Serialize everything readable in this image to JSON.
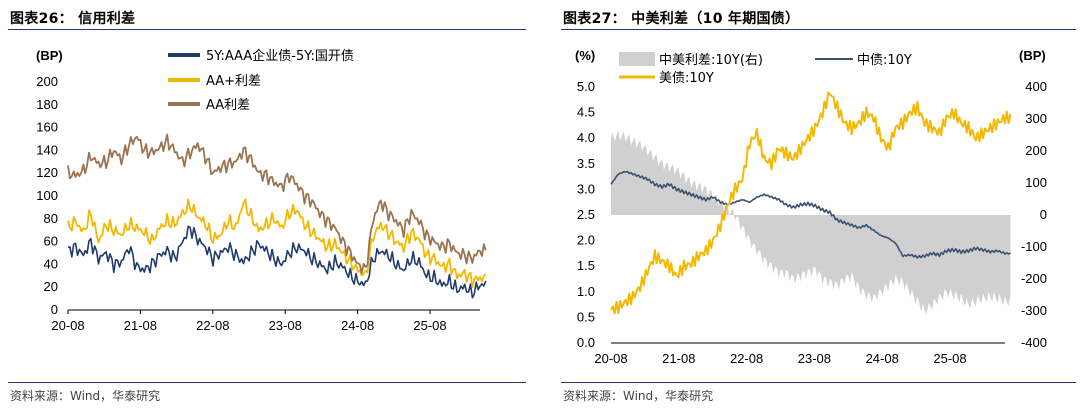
{
  "left": {
    "title": "图表26： 信用利差",
    "source": "资料来源：Wind，华泰研究",
    "chart_data": {
      "type": "line",
      "ylabel": "(BP)",
      "ylim": [
        0,
        200
      ],
      "yticks": [
        "0",
        "20",
        "40",
        "60",
        "80",
        "100",
        "120",
        "140",
        "160",
        "180",
        "200"
      ],
      "xticks": [
        "20-08",
        "21-08",
        "22-08",
        "23-08",
        "24-08",
        "25-08"
      ],
      "series": [
        {
          "name": "5Y:AAA企业债-5Y:国开债",
          "color": "#1f3a6b",
          "values": [
            52,
            55,
            48,
            60,
            45,
            50,
            40,
            42,
            55,
            38,
            35,
            40,
            48,
            52,
            45,
            60,
            72,
            62,
            55,
            45,
            50,
            55,
            48,
            42,
            50,
            58,
            52,
            45,
            40,
            50,
            55,
            52,
            45,
            40,
            35,
            42,
            38,
            30,
            25,
            22,
            45,
            52,
            48,
            40,
            35,
            45,
            42,
            30,
            28,
            22,
            25,
            18,
            20,
            15,
            22
          ]
        },
        {
          "name": "AA+利差",
          "color": "#f5b800",
          "values": [
            72,
            78,
            68,
            85,
            60,
            75,
            70,
            66,
            75,
            72,
            68,
            60,
            72,
            78,
            75,
            85,
            92,
            82,
            76,
            62,
            66,
            78,
            72,
            95,
            82,
            70,
            75,
            80,
            72,
            85,
            88,
            75,
            68,
            62,
            55,
            58,
            50,
            42,
            35,
            30,
            65,
            75,
            68,
            60,
            55,
            68,
            62,
            48,
            45,
            38,
            40,
            30,
            32,
            26,
            28
          ]
        },
        {
          "name": "AA利差",
          "color": "#9a7350",
          "values": [
            120,
            118,
            122,
            135,
            128,
            130,
            140,
            132,
            145,
            152,
            140,
            138,
            142,
            148,
            140,
            130,
            138,
            145,
            135,
            120,
            125,
            128,
            130,
            140,
            132,
            120,
            118,
            112,
            108,
            118,
            110,
            100,
            95,
            85,
            78,
            72,
            60,
            50,
            40,
            35,
            80,
            95,
            85,
            78,
            70,
            85,
            78,
            65,
            60,
            55,
            58,
            50,
            48,
            45,
            52
          ]
        }
      ]
    }
  },
  "right": {
    "title": "图表27： 中美利差（10 年期国债）",
    "source": "资料来源：Wind，华泰研究",
    "chart_data": {
      "type": "line",
      "ylabel_left": "(%)",
      "ylabel_right": "(BP)",
      "ylim_left": [
        0,
        5
      ],
      "ylim_right": [
        -400,
        400
      ],
      "yticks_left": [
        "0.0",
        "0.5",
        "1.0",
        "1.5",
        "2.0",
        "2.5",
        "3.0",
        "3.5",
        "4.0",
        "4.5",
        "5.0"
      ],
      "yticks_right": [
        "-400",
        "-300",
        "-200",
        "-100",
        "0",
        "100",
        "200",
        "300",
        "400"
      ],
      "xticks": [
        "20-08",
        "21-08",
        "22-08",
        "23-08",
        "24-08",
        "25-08"
      ],
      "series": [
        {
          "name": "中美利差:10Y(右)",
          "type": "area",
          "color": "#d0d0d0",
          "values": [
            240,
            250,
            245,
            230,
            220,
            200,
            180,
            160,
            150,
            140,
            120,
            100,
            90,
            80,
            60,
            40,
            20,
            0,
            -40,
            -80,
            -110,
            -140,
            -160,
            -180,
            -180,
            -200,
            -190,
            -180,
            -170,
            -200,
            -210,
            -220,
            -200,
            -190,
            -230,
            -250,
            -260,
            -240,
            -220,
            -200,
            -210,
            -240,
            -270,
            -300,
            -280,
            -260,
            -240,
            -250,
            -260,
            -280,
            -270,
            -260,
            -255,
            -260,
            -270
          ]
        },
        {
          "name": "中债:10Y",
          "type": "line",
          "color": "#3c4f73",
          "values": [
            3.1,
            3.3,
            3.35,
            3.3,
            3.25,
            3.2,
            3.1,
            3.05,
            3.1,
            3.0,
            2.95,
            2.9,
            2.85,
            2.8,
            2.85,
            2.75,
            2.7,
            2.75,
            2.8,
            2.75,
            2.85,
            2.9,
            2.85,
            2.8,
            2.7,
            2.65,
            2.7,
            2.72,
            2.68,
            2.6,
            2.55,
            2.4,
            2.35,
            2.3,
            2.25,
            2.3,
            2.2,
            2.1,
            2.05,
            1.95,
            1.7,
            1.72,
            1.68,
            1.7,
            1.75,
            1.72,
            1.8,
            1.82,
            1.78,
            1.8,
            1.85,
            1.82,
            1.78,
            1.8,
            1.75
          ]
        },
        {
          "name": "美债:10Y",
          "type": "line",
          "color": "#f5b800",
          "values": [
            0.65,
            0.7,
            0.8,
            0.9,
            1.1,
            1.4,
            1.7,
            1.6,
            1.5,
            1.3,
            1.5,
            1.55,
            1.7,
            1.8,
            2.0,
            2.3,
            2.7,
            3.0,
            3.2,
            3.9,
            4.1,
            3.6,
            3.5,
            3.8,
            3.7,
            3.6,
            3.8,
            4.0,
            4.2,
            4.5,
            4.9,
            4.6,
            4.3,
            4.2,
            4.3,
            4.5,
            4.4,
            4.0,
            3.8,
            4.2,
            4.3,
            4.5,
            4.6,
            4.3,
            4.2,
            4.1,
            4.4,
            4.5,
            4.3,
            4.2,
            4.0,
            4.1,
            4.2,
            4.3,
            4.4
          ]
        }
      ]
    }
  }
}
